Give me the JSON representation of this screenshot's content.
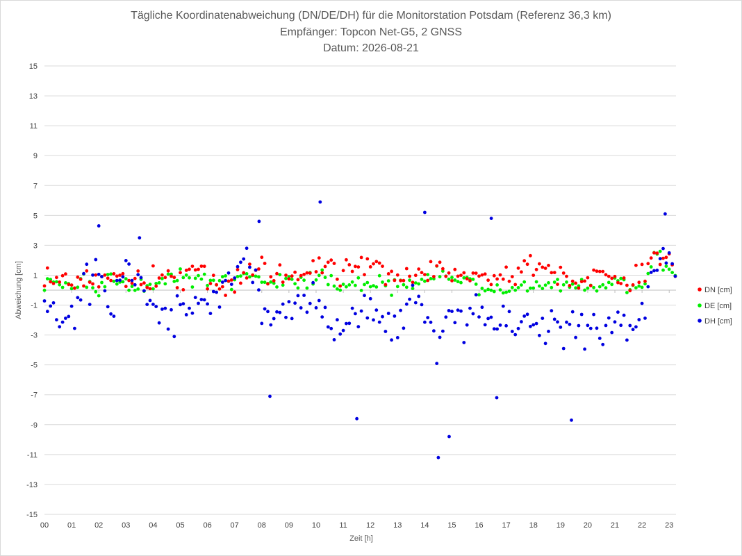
{
  "chart_data": {
    "type": "scatter",
    "title_lines": [
      "Tägliche Koordinatenabweichung (DN/DE/DH) für die Monitorstation Potsdam (Referenz 36,3 km)",
      "Empfänger: Topcon Net-G5, 2 GNSS",
      "Datum: 2026-08-21"
    ],
    "xlabel": "Zeit [h]",
    "ylabel": "Abweichung [cm]",
    "xlim": [
      0,
      23.25
    ],
    "ylim": [
      -15,
      15
    ],
    "y_ticks": [
      15,
      13,
      11,
      9,
      7,
      5,
      3,
      1,
      -1,
      -3,
      -5,
      -7,
      -9,
      -11,
      -13,
      -15
    ],
    "x_ticks": [
      {
        "value": 0,
        "label": "00"
      },
      {
        "value": 1,
        "label": "01"
      },
      {
        "value": 2,
        "label": "02"
      },
      {
        "value": 3,
        "label": "03"
      },
      {
        "value": 4,
        "label": "04"
      },
      {
        "value": 5,
        "label": "05"
      },
      {
        "value": 6,
        "label": "06"
      },
      {
        "value": 7,
        "label": "07"
      },
      {
        "value": 8,
        "label": "08"
      },
      {
        "value": 9,
        "label": "09"
      },
      {
        "value": 10,
        "label": "10"
      },
      {
        "value": 11,
        "label": "11"
      },
      {
        "value": 12,
        "label": "12"
      },
      {
        "value": 13,
        "label": "13"
      },
      {
        "value": 14,
        "label": "14"
      },
      {
        "value": 15,
        "label": "15"
      },
      {
        "value": 16,
        "label": "16"
      },
      {
        "value": 17,
        "label": "17"
      },
      {
        "value": 18,
        "label": "18"
      },
      {
        "value": 19,
        "label": "19"
      },
      {
        "value": 20,
        "label": "20"
      },
      {
        "value": 21,
        "label": "21"
      },
      {
        "value": 22,
        "label": "22"
      },
      {
        "value": 23,
        "label": "23"
      }
    ],
    "grid": "horizontal",
    "legend_position": "right",
    "x_hours": [
      0,
      0.5,
      1,
      1.5,
      2,
      2.5,
      3,
      3.5,
      4,
      4.5,
      5,
      5.5,
      6,
      6.5,
      7,
      7.5,
      8,
      8.5,
      9,
      9.5,
      10,
      10.5,
      11,
      11.5,
      12,
      12.5,
      13,
      13.5,
      14,
      14.5,
      15,
      15.5,
      16,
      16.5,
      17,
      17.5,
      18,
      18.5,
      19,
      19.5,
      20,
      20.5,
      21,
      21.5,
      22,
      22.5,
      23,
      23.2
    ],
    "points_per_interval": 9,
    "series": [
      {
        "name": "DN [cm]",
        "color": "#ff0000",
        "values": [
          0.6,
          1.0,
          0.4,
          0.6,
          0.8,
          1.0,
          0.7,
          0.8,
          0.6,
          0.9,
          0.8,
          1.1,
          0.6,
          0.5,
          0.6,
          1.3,
          1.4,
          0.9,
          0.8,
          0.7,
          1.6,
          1.4,
          1.2,
          1.3,
          1.7,
          1.1,
          1.2,
          1.0,
          1.3,
          1.2,
          1.0,
          0.9,
          0.8,
          0.7,
          0.8,
          1.1,
          1.6,
          1.3,
          1.0,
          0.7,
          0.6,
          0.9,
          0.8,
          0.5,
          1.2,
          2.1,
          2.3,
          1.6
        ],
        "spread": 1.1
      },
      {
        "name": "DE [cm]",
        "color": "#00ee00",
        "values": [
          0.3,
          0.5,
          0.2,
          0.5,
          0.3,
          0.5,
          0.4,
          0.3,
          0.5,
          0.6,
          0.9,
          0.9,
          0.7,
          0.6,
          0.7,
          1.1,
          0.6,
          0.3,
          0.6,
          0.4,
          1.0,
          0.8,
          0.3,
          0.2,
          0.4,
          0.2,
          0.3,
          0.5,
          0.8,
          1.0,
          0.5,
          0.6,
          0.4,
          0.1,
          0.0,
          0.3,
          0.2,
          0.6,
          0.4,
          0.2,
          0.1,
          0.3,
          0.6,
          0.2,
          0.0,
          2.5,
          1.4,
          0.8
        ],
        "spread": 0.8
      },
      {
        "name": "DH [cm]",
        "color": "#0000e0",
        "values": [
          -1.2,
          -1.8,
          -1.5,
          0.2,
          0.6,
          -0.8,
          0.8,
          0.9,
          -1.2,
          -2.0,
          -1.5,
          -1.6,
          -0.6,
          -0.5,
          0.9,
          2.4,
          -0.8,
          -1.6,
          -1.4,
          -1.0,
          -0.5,
          -2.2,
          -2.1,
          -1.6,
          -1.3,
          -2.5,
          -2.4,
          -1.4,
          -1.2,
          -3.6,
          -1.6,
          -1.9,
          -0.9,
          -3.0,
          -1.7,
          -2.0,
          -2.6,
          -2.8,
          -2.2,
          -2.0,
          -3.0,
          -2.4,
          -2.3,
          -2.7,
          -1.5,
          2.0,
          2.4,
          0.6
        ],
        "spread": 2.0,
        "outliers": [
          {
            "x": 2.0,
            "y": 4.3
          },
          {
            "x": 3.5,
            "y": 3.5
          },
          {
            "x": 7.9,
            "y": 4.6
          },
          {
            "x": 8.3,
            "y": -7.1
          },
          {
            "x": 10.15,
            "y": 5.9
          },
          {
            "x": 11.5,
            "y": -8.6
          },
          {
            "x": 14.0,
            "y": 5.2
          },
          {
            "x": 14.5,
            "y": -11.2
          },
          {
            "x": 14.9,
            "y": -9.8
          },
          {
            "x": 16.45,
            "y": 4.8
          },
          {
            "x": 16.65,
            "y": -7.2
          },
          {
            "x": 19.4,
            "y": -8.7
          },
          {
            "x": 22.85,
            "y": 5.1
          }
        ]
      }
    ]
  }
}
